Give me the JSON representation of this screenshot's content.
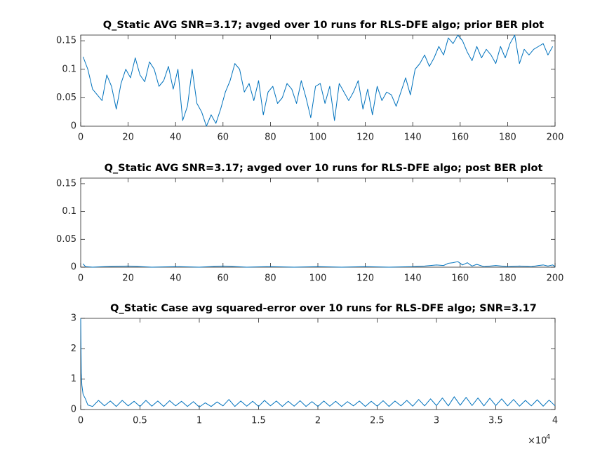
{
  "chart_data": [
    {
      "type": "line",
      "title": "Q_Static AVG SNR=3.17; avged over 10 runs for RLS-DFE algo; prior BER plot",
      "color": "#0072bd",
      "xlim": [
        0,
        200
      ],
      "xticks": [
        0,
        20,
        40,
        60,
        80,
        100,
        120,
        140,
        160,
        180,
        200
      ],
      "ylim": [
        0,
        0.16
      ],
      "yticks": [
        0,
        0.05,
        0.1,
        0.15
      ],
      "x": [
        1,
        3,
        5,
        7,
        9,
        11,
        13,
        15,
        17,
        19,
        21,
        23,
        25,
        27,
        29,
        31,
        33,
        35,
        37,
        39,
        41,
        43,
        45,
        47,
        49,
        51,
        53,
        55,
        57,
        59,
        61,
        63,
        65,
        67,
        69,
        71,
        73,
        75,
        77,
        79,
        81,
        83,
        85,
        87,
        89,
        91,
        93,
        95,
        97,
        99,
        101,
        103,
        105,
        107,
        109,
        111,
        113,
        115,
        117,
        119,
        121,
        123,
        125,
        127,
        129,
        131,
        133,
        135,
        137,
        139,
        141,
        143,
        145,
        147,
        149,
        151,
        153,
        155,
        157,
        159,
        161,
        163,
        165,
        167,
        169,
        171,
        173,
        175,
        177,
        179,
        181,
        183,
        185,
        187,
        189,
        191,
        193,
        195,
        197,
        199
      ],
      "values": [
        0.122,
        0.1,
        0.065,
        0.055,
        0.045,
        0.09,
        0.07,
        0.03,
        0.075,
        0.1,
        0.085,
        0.12,
        0.09,
        0.078,
        0.113,
        0.1,
        0.07,
        0.08,
        0.105,
        0.065,
        0.1,
        0.01,
        0.035,
        0.1,
        0.04,
        0.025,
        0.0,
        0.02,
        0.005,
        0.03,
        0.06,
        0.08,
        0.11,
        0.1,
        0.06,
        0.075,
        0.045,
        0.08,
        0.02,
        0.06,
        0.07,
        0.04,
        0.05,
        0.075,
        0.065,
        0.04,
        0.08,
        0.05,
        0.015,
        0.07,
        0.075,
        0.04,
        0.07,
        0.01,
        0.075,
        0.06,
        0.045,
        0.06,
        0.08,
        0.03,
        0.065,
        0.02,
        0.07,
        0.045,
        0.06,
        0.055,
        0.035,
        0.06,
        0.085,
        0.055,
        0.1,
        0.11,
        0.125,
        0.105,
        0.12,
        0.14,
        0.125,
        0.155,
        0.145,
        0.16,
        0.15,
        0.13,
        0.115,
        0.14,
        0.12,
        0.135,
        0.125,
        0.11,
        0.14,
        0.12,
        0.145,
        0.16,
        0.11,
        0.135,
        0.125,
        0.135,
        0.14,
        0.145,
        0.125,
        0.14
      ]
    },
    {
      "type": "line",
      "title": "Q_Static AVG SNR=3.17; avged over 10 runs for RLS-DFE algo; post BER plot",
      "color": "#0072bd",
      "xlim": [
        0,
        200
      ],
      "xticks": [
        0,
        20,
        40,
        60,
        80,
        100,
        120,
        140,
        160,
        180,
        200
      ],
      "ylim": [
        0,
        0.16
      ],
      "yticks": [
        0,
        0.05,
        0.1,
        0.15
      ],
      "x": [
        1,
        2,
        5,
        10,
        20,
        30,
        40,
        50,
        60,
        70,
        80,
        90,
        100,
        110,
        120,
        130,
        140,
        145,
        150,
        153,
        155,
        157,
        159,
        161,
        163,
        165,
        167,
        170,
        175,
        180,
        185,
        190,
        193,
        195,
        197,
        199,
        200
      ],
      "values": [
        0.006,
        0.001,
        0,
        0.001,
        0.002,
        0,
        0.001,
        0,
        0.002,
        0,
        0.001,
        0,
        0.001,
        0,
        0.001,
        0,
        0.001,
        0.002,
        0.004,
        0.003,
        0.007,
        0.008,
        0.01,
        0.004,
        0.008,
        0.002,
        0.005,
        0.001,
        0.003,
        0.001,
        0.002,
        0.001,
        0.003,
        0.004,
        0.002,
        0.004,
        0.001
      ]
    },
    {
      "type": "line",
      "title": "Q_Static Case avg squared-error over 10 runs for RLS-DFE algo; SNR=3.17",
      "color": "#0072bd",
      "xlim": [
        0,
        40000
      ],
      "xticks": [
        0,
        {
          "value": 5000,
          "label": "0.5"
        },
        {
          "value": 10000,
          "label": "1"
        },
        {
          "value": 15000,
          "label": "1.5"
        },
        {
          "value": 20000,
          "label": "2"
        },
        {
          "value": 25000,
          "label": "2.5"
        },
        {
          "value": 30000,
          "label": "3"
        },
        {
          "value": 35000,
          "label": "3.5"
        },
        {
          "value": 40000,
          "label": "4"
        }
      ],
      "x_multiplier": {
        "base": "×10",
        "exponent": "4"
      },
      "ylim": [
        0,
        3
      ],
      "yticks": [
        0,
        1,
        2,
        3
      ],
      "x": [
        0,
        20,
        50,
        100,
        200,
        400,
        600,
        1000,
        1500,
        2000,
        2500,
        3000,
        3500,
        4000,
        4500,
        5000,
        5500,
        6000,
        6500,
        7000,
        7500,
        8000,
        8500,
        9000,
        9500,
        10000,
        10500,
        11000,
        11500,
        12000,
        12500,
        13000,
        13500,
        14000,
        14500,
        15000,
        15500,
        16000,
        16500,
        17000,
        17500,
        18000,
        18500,
        19000,
        19500,
        20000,
        20500,
        21000,
        21500,
        22000,
        22500,
        23000,
        23500,
        24000,
        24500,
        25000,
        25500,
        26000,
        26500,
        27000,
        27500,
        28000,
        28500,
        29000,
        29500,
        30000,
        30500,
        31000,
        31500,
        32000,
        32500,
        33000,
        33500,
        34000,
        34500,
        35000,
        35500,
        36000,
        36500,
        37000,
        37500,
        38000,
        38500,
        39000,
        39500,
        40000
      ],
      "values": [
        3.0,
        2.2,
        1.2,
        0.8,
        0.5,
        0.35,
        0.15,
        0.1,
        0.3,
        0.12,
        0.28,
        0.1,
        0.3,
        0.12,
        0.27,
        0.1,
        0.3,
        0.11,
        0.28,
        0.1,
        0.29,
        0.12,
        0.27,
        0.1,
        0.26,
        0.08,
        0.22,
        0.1,
        0.25,
        0.12,
        0.33,
        0.1,
        0.28,
        0.11,
        0.27,
        0.1,
        0.3,
        0.12,
        0.28,
        0.1,
        0.27,
        0.11,
        0.29,
        0.1,
        0.26,
        0.1,
        0.28,
        0.11,
        0.27,
        0.1,
        0.26,
        0.12,
        0.28,
        0.1,
        0.27,
        0.11,
        0.29,
        0.1,
        0.28,
        0.12,
        0.3,
        0.11,
        0.33,
        0.12,
        0.35,
        0.13,
        0.38,
        0.12,
        0.42,
        0.14,
        0.4,
        0.13,
        0.38,
        0.12,
        0.37,
        0.13,
        0.35,
        0.12,
        0.33,
        0.11,
        0.3,
        0.12,
        0.32,
        0.11,
        0.31,
        0.12
      ]
    }
  ]
}
